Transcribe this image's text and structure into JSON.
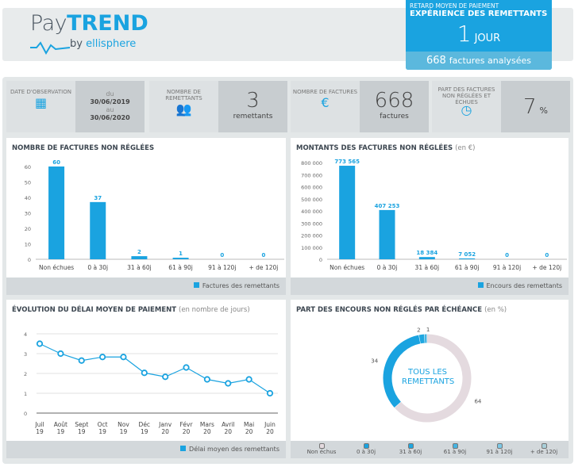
{
  "brand": {
    "pay": "Pay",
    "trend": "TREND",
    "by": "by",
    "ellisphere": "ellisphere"
  },
  "kpi": {
    "subtitle": "RETARD MOYEN DE PAIEMENT",
    "title": "EXPÉRIENCE DES REMETTANTS",
    "value": "1",
    "unit": "JOUR",
    "count": "668",
    "count_label": "factures analysées"
  },
  "cards": [
    {
      "label": "DATE D'OBSERVATION",
      "icon": "calendar-clock-icon",
      "du": "du",
      "from": "30/06/2019",
      "au": "au",
      "to": "30/06/2020"
    },
    {
      "label": "NOMBRE DE REMETTANTS",
      "icon": "people-icon",
      "value": "3",
      "unit": "remettants"
    },
    {
      "label": "NOMBRE DE FACTURES",
      "icon": "invoice-euro-icon",
      "value": "668",
      "unit": "factures"
    },
    {
      "label": "PART DES FACTURES NON RÉGLÉES ET ÉCHUES",
      "icon": "clock-invoice-icon",
      "value": "7",
      "unit": "%"
    }
  ],
  "colors": {
    "accent": "#1aa3e0",
    "donut_grey": "#e4dadf"
  },
  "chart_data": [
    {
      "type": "bar",
      "title": "NOMBRE DE FACTURES NON RÉGLÉES",
      "subtitle": "",
      "categories": [
        "Non échues",
        "0 à 30j",
        "31 à 60j",
        "61 à 90j",
        "91 à 120j",
        "+ de 120j"
      ],
      "series": [
        {
          "name": "Factures des remettants",
          "values": [
            60,
            37,
            2,
            1,
            0,
            0
          ]
        }
      ],
      "labels": [
        "60",
        "37",
        "2",
        "1",
        "0",
        "0"
      ],
      "ylim": [
        0,
        60
      ],
      "yticks": [
        "0",
        "10",
        "20",
        "30",
        "40",
        "50",
        "60"
      ],
      "legend": "bottom-right"
    },
    {
      "type": "bar",
      "title": "MONTANTS DES FACTURES NON RÉGLÉES",
      "subtitle": "(en €)",
      "categories": [
        "Non échues",
        "0 à 30j",
        "31 à 60j",
        "61 à 90j",
        "91 à 120j",
        "+ de 120j"
      ],
      "series": [
        {
          "name": "Encours des remettants",
          "values": [
            773565,
            407253,
            18384,
            7052,
            0,
            0
          ]
        }
      ],
      "labels": [
        "773 565",
        "407 253",
        "18 384",
        "7 052",
        "0",
        "0"
      ],
      "ylim": [
        0,
        800000
      ],
      "yticks": [
        "0",
        "100 000",
        "200 000",
        "300 000",
        "400 000",
        "500 000",
        "600 000",
        "700 000",
        "800 000"
      ],
      "legend": "bottom-right"
    },
    {
      "type": "line",
      "title": "ÉVOLUTION DU DÉLAI MOYEN DE PAIEMENT",
      "subtitle": "(en nombre de jours)",
      "categories": [
        [
          "Juil",
          "19"
        ],
        [
          "Août",
          "19"
        ],
        [
          "Sept",
          "19"
        ],
        [
          "Oct",
          "19"
        ],
        [
          "Nov",
          "19"
        ],
        [
          "Déc",
          "19"
        ],
        [
          "Janv",
          "20"
        ],
        [
          "Févr",
          "20"
        ],
        [
          "Mars",
          "20"
        ],
        [
          "Avril",
          "20"
        ],
        [
          "Mai",
          "20"
        ],
        [
          "Juin",
          "20"
        ]
      ],
      "series": [
        {
          "name": "Délai moyen des remettants",
          "values": [
            3.5,
            3.0,
            2.65,
            2.83,
            2.83,
            2.03,
            1.83,
            2.3,
            1.7,
            1.5,
            1.7,
            1.0
          ]
        }
      ],
      "ylim": [
        0,
        4
      ],
      "yticks": [
        "0",
        "1",
        "2",
        "3",
        "4"
      ],
      "grid": true,
      "legend": "bottom-right"
    },
    {
      "type": "pie",
      "title": "PART DES ENCOURS NON RÉGLÉS PAR ÉCHÉANCE",
      "subtitle": "(en %)",
      "center_label": "TOUS LES REMETTANTS",
      "categories": [
        "Non échus",
        "0 à 30j",
        "31 à 60j",
        "61 à 90j",
        "91 à 120j",
        "+ de 120j"
      ],
      "values": [
        64,
        34,
        2,
        1,
        0,
        0
      ],
      "labels": [
        "64",
        "34",
        "2",
        "1",
        "",
        ""
      ],
      "colors": [
        "#e4dadf",
        "#1aa3e0",
        "#1fa7e0",
        "#45b4e2",
        "#7cc8e6",
        "#a9cfd9"
      ],
      "legend": "bottom"
    }
  ]
}
